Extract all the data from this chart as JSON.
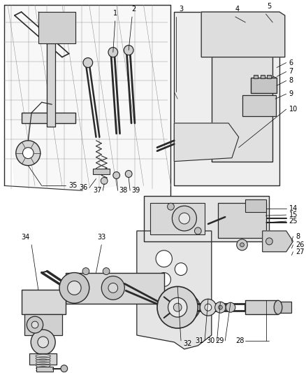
{
  "bg_color": "#ffffff",
  "fig_width": 4.38,
  "fig_height": 5.33,
  "dpi": 100,
  "lc": "#2a2a2a",
  "lc2": "#555555",
  "lc3": "#888888",
  "fc_light": "#e8e8e8",
  "fc_mid": "#d0d0d0",
  "fc_dark": "#bbbbbb",
  "label_fs": 7.0,
  "label_color": "#000000",
  "leader_lw": 0.55,
  "part_lw": 0.9
}
